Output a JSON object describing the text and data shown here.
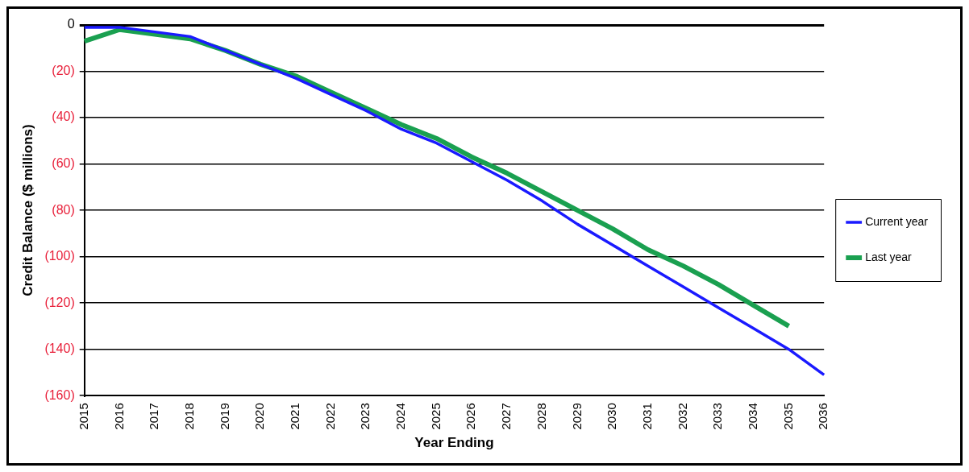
{
  "chart_data": {
    "type": "line",
    "xlabel": "Year Ending",
    "ylabel": "Credit Balance ($ millions)",
    "categories": [
      "2015",
      "2016",
      "2017",
      "2018",
      "2019",
      "2020",
      "2021",
      "2022",
      "2023",
      "2024",
      "2025",
      "2026",
      "2027",
      "2028",
      "2029",
      "2030",
      "2031",
      "2032",
      "2033",
      "2034",
      "2035",
      "2036"
    ],
    "series": [
      {
        "name": "Current year",
        "color": "#1a1aff",
        "values": [
          -1,
          -1,
          -3,
          -5,
          -11,
          -17,
          -23,
          -30,
          -37,
          -45,
          -51,
          -59,
          -67,
          -76,
          -86,
          -95,
          -104,
          -113,
          -122,
          -131,
          -140,
          -151
        ]
      },
      {
        "name": "Last year",
        "color": "#1aa050",
        "values": [
          -7,
          -2,
          -4,
          -6,
          -11,
          -17,
          -22,
          -29,
          -36,
          -43,
          -49,
          -57,
          -64,
          -72,
          -80,
          -88,
          -97,
          -104,
          -112,
          -121,
          -130,
          null
        ]
      }
    ],
    "ylim": [
      -160,
      0
    ],
    "yticks": [
      {
        "value": 0,
        "label": "0"
      },
      {
        "value": -20,
        "label": "(20)"
      },
      {
        "value": -40,
        "label": "(40)"
      },
      {
        "value": -60,
        "label": "(60)"
      },
      {
        "value": -80,
        "label": "(80)"
      },
      {
        "value": -100,
        "label": "(100)"
      },
      {
        "value": -120,
        "label": "(120)"
      },
      {
        "value": -140,
        "label": "(140)"
      },
      {
        "value": -160,
        "label": "(160)"
      }
    ],
    "grid": "y",
    "legend": "right",
    "marker": "none",
    "line_style": "solid"
  }
}
